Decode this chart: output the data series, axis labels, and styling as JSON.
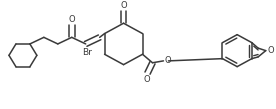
{
  "bg_color": "#ffffff",
  "line_color": "#3a3a3a",
  "lw": 1.1,
  "figsize": [
    2.76,
    1.09
  ],
  "dpi": 100,
  "xlim": [
    0,
    276
  ],
  "ylim": [
    0,
    109
  ]
}
